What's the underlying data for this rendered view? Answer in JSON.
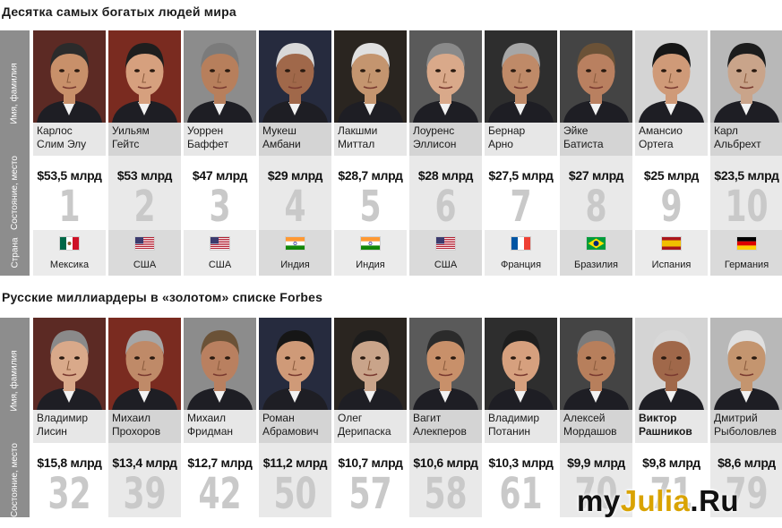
{
  "section1": {
    "title": "Десятка самых богатых людей мира",
    "side_name": "Имя, фамилия",
    "side_worth": "Состояние, место",
    "side_country": "Страна",
    "people": [
      {
        "first": "Карлос",
        "last": "Слим Элу",
        "worth": "$53,5 млрд",
        "rank": "1",
        "country": "Мексика",
        "flag": "mexico-flag-icon"
      },
      {
        "first": "Уильям",
        "last": "Гейтс",
        "worth": "$53 млрд",
        "rank": "2",
        "country": "США",
        "flag": "usa-flag-icon"
      },
      {
        "first": "Уоррен",
        "last": "Баффет",
        "worth": "$47 млрд",
        "rank": "3",
        "country": "США",
        "flag": "usa-flag-icon"
      },
      {
        "first": "Мукеш",
        "last": "Амбани",
        "worth": "$29 млрд",
        "rank": "4",
        "country": "Индия",
        "flag": "india-flag-icon"
      },
      {
        "first": "Лакшми",
        "last": "Миттал",
        "worth": "$28,7 млрд",
        "rank": "5",
        "country": "Индия",
        "flag": "india-flag-icon"
      },
      {
        "first": "Лоуренс",
        "last": "Эллисон",
        "worth": "$28 млрд",
        "rank": "6",
        "country": "США",
        "flag": "usa-flag-icon"
      },
      {
        "first": "Бернар",
        "last": "Арно",
        "worth": "$27,5 млрд",
        "rank": "7",
        "country": "Франция",
        "flag": "france-flag-icon"
      },
      {
        "first": "Эйке",
        "last": "Батиста",
        "worth": "$27 млрд",
        "rank": "8",
        "country": "Бразилия",
        "flag": "brazil-flag-icon"
      },
      {
        "first": "Амансио",
        "last": "Ортега",
        "worth": "$25 млрд",
        "rank": "9",
        "country": "Испания",
        "flag": "spain-flag-icon"
      },
      {
        "first": "Карл",
        "last": "Альбрехт",
        "worth": "$23,5 млрд",
        "rank": "10",
        "country": "Германия",
        "flag": "germany-flag-icon"
      }
    ]
  },
  "section2": {
    "title": "Русские миллиардеры в «золотом» списке Forbes",
    "side_name": "Имя, фамилия",
    "side_worth": "Состояние, место",
    "people": [
      {
        "first": "Владимир",
        "last": "Лисин",
        "worth": "$15,8 млрд",
        "rank": "32"
      },
      {
        "first": "Михаил",
        "last": "Прохоров",
        "worth": "$13,4 млрд",
        "rank": "39"
      },
      {
        "first": "Михаил",
        "last": "Фридман",
        "worth": "$12,7 млрд",
        "rank": "42"
      },
      {
        "first": "Роман",
        "last": "Абрамович",
        "worth": "$11,2 млрд",
        "rank": "50"
      },
      {
        "first": "Олег",
        "last": "Дерипаска",
        "worth": "$10,7 млрд",
        "rank": "57"
      },
      {
        "first": "Вагит",
        "last": "Алекперов",
        "worth": "$10,6 млрд",
        "rank": "58"
      },
      {
        "first": "Владимир",
        "last": "Потанин",
        "worth": "$10,3 млрд",
        "rank": "61"
      },
      {
        "first": "Алексей",
        "last": "Мордашов",
        "worth": "$9,9 млрд",
        "rank": "70"
      },
      {
        "first": "Виктор",
        "last": "Рашников",
        "worth": "$9,8 млрд",
        "rank": "71"
      },
      {
        "first": "Дмитрий",
        "last": "Рыболовлев",
        "worth": "$8,6 млрд",
        "rank": "79"
      }
    ]
  },
  "watermark": {
    "part1": "my",
    "part2": "Julia",
    "part3": ".Ru"
  },
  "colors": {
    "odd_name_bg": "#e6e6e6",
    "even_name_bg": "#d3d3d3",
    "side_bg": "#8d8d8d",
    "rank_color": "#c9c9c9"
  }
}
